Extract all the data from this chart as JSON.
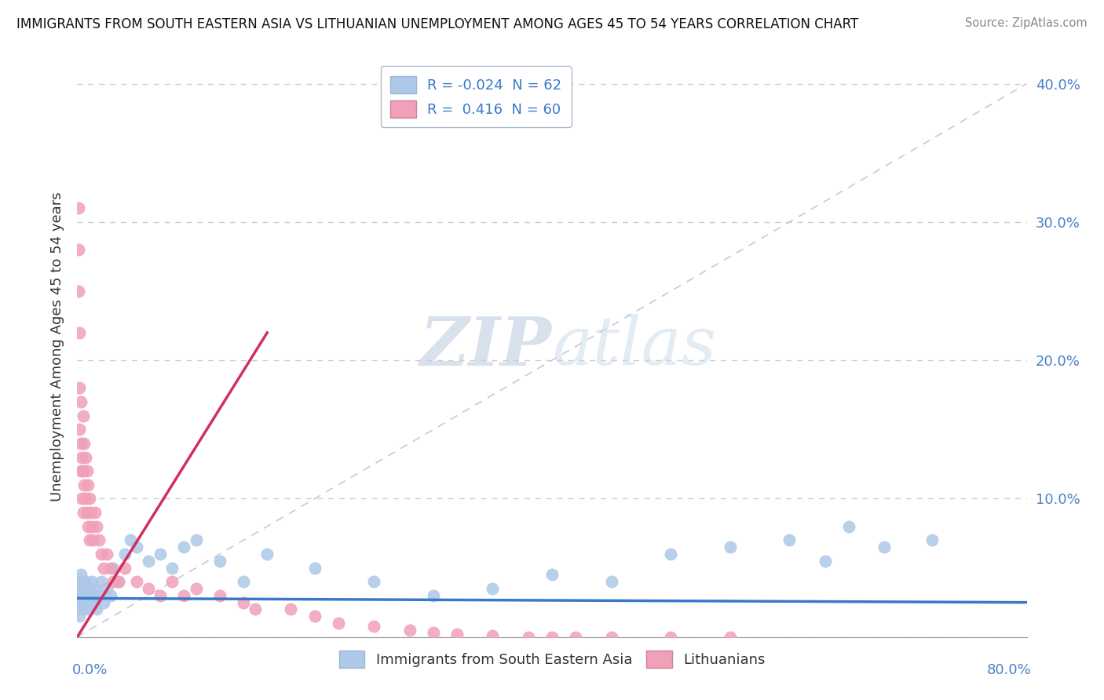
{
  "title": "IMMIGRANTS FROM SOUTH EASTERN ASIA VS LITHUANIAN UNEMPLOYMENT AMONG AGES 45 TO 54 YEARS CORRELATION CHART",
  "source": "Source: ZipAtlas.com",
  "ylabel": "Unemployment Among Ages 45 to 54 years",
  "xlim": [
    0.0,
    0.8
  ],
  "ylim": [
    0.0,
    0.42
  ],
  "blue_color": "#adc8e8",
  "pink_color": "#f0a0b8",
  "blue_line_color": "#3a78c9",
  "pink_line_color": "#d03060",
  "diag_color": "#c8c8d8",
  "watermark_color": "#dce6f0",
  "legend_blue_label": "R = -0.024  N = 62",
  "legend_pink_label": "R =  0.416  N = 60",
  "legend_entries": [
    "Immigrants from South Eastern Asia",
    "Lithuanians"
  ],
  "blue_x": [
    0.001,
    0.001,
    0.001,
    0.001,
    0.002,
    0.002,
    0.002,
    0.003,
    0.003,
    0.003,
    0.004,
    0.004,
    0.004,
    0.005,
    0.005,
    0.006,
    0.006,
    0.007,
    0.007,
    0.008,
    0.008,
    0.009,
    0.009,
    0.01,
    0.01,
    0.011,
    0.012,
    0.013,
    0.014,
    0.015,
    0.016,
    0.018,
    0.02,
    0.022,
    0.025,
    0.028,
    0.03,
    0.035,
    0.04,
    0.045,
    0.05,
    0.06,
    0.07,
    0.08,
    0.09,
    0.1,
    0.12,
    0.14,
    0.16,
    0.2,
    0.25,
    0.3,
    0.35,
    0.4,
    0.45,
    0.5,
    0.55,
    0.6,
    0.63,
    0.65,
    0.68,
    0.72
  ],
  "blue_y": [
    0.03,
    0.04,
    0.02,
    0.035,
    0.025,
    0.04,
    0.015,
    0.03,
    0.045,
    0.02,
    0.035,
    0.025,
    0.04,
    0.03,
    0.02,
    0.035,
    0.025,
    0.03,
    0.04,
    0.025,
    0.035,
    0.02,
    0.03,
    0.035,
    0.025,
    0.03,
    0.04,
    0.025,
    0.03,
    0.035,
    0.02,
    0.03,
    0.04,
    0.025,
    0.035,
    0.03,
    0.05,
    0.04,
    0.06,
    0.07,
    0.065,
    0.055,
    0.06,
    0.05,
    0.065,
    0.07,
    0.055,
    0.04,
    0.06,
    0.05,
    0.04,
    0.03,
    0.035,
    0.045,
    0.04,
    0.06,
    0.065,
    0.07,
    0.055,
    0.08,
    0.065,
    0.07
  ],
  "pink_x": [
    0.001,
    0.001,
    0.001,
    0.002,
    0.002,
    0.002,
    0.003,
    0.003,
    0.003,
    0.004,
    0.004,
    0.005,
    0.005,
    0.005,
    0.006,
    0.006,
    0.007,
    0.007,
    0.008,
    0.008,
    0.009,
    0.009,
    0.01,
    0.01,
    0.011,
    0.012,
    0.013,
    0.015,
    0.016,
    0.018,
    0.02,
    0.022,
    0.025,
    0.028,
    0.03,
    0.035,
    0.04,
    0.05,
    0.06,
    0.07,
    0.08,
    0.09,
    0.1,
    0.12,
    0.14,
    0.15,
    0.18,
    0.2,
    0.22,
    0.25,
    0.28,
    0.3,
    0.32,
    0.35,
    0.38,
    0.4,
    0.42,
    0.45,
    0.5,
    0.55
  ],
  "pink_y": [
    0.28,
    0.31,
    0.25,
    0.22,
    0.18,
    0.15,
    0.17,
    0.14,
    0.12,
    0.13,
    0.1,
    0.16,
    0.12,
    0.09,
    0.14,
    0.11,
    0.13,
    0.1,
    0.12,
    0.09,
    0.11,
    0.08,
    0.1,
    0.07,
    0.09,
    0.08,
    0.07,
    0.09,
    0.08,
    0.07,
    0.06,
    0.05,
    0.06,
    0.05,
    0.04,
    0.04,
    0.05,
    0.04,
    0.035,
    0.03,
    0.04,
    0.03,
    0.035,
    0.03,
    0.025,
    0.02,
    0.02,
    0.015,
    0.01,
    0.008,
    0.005,
    0.003,
    0.002,
    0.001,
    0.0,
    0.0,
    0.0,
    0.0,
    0.0,
    0.0
  ],
  "pink_line_x": [
    0.0,
    0.16
  ],
  "pink_line_y": [
    0.0,
    0.22
  ],
  "blue_line_x": [
    0.0,
    0.8
  ],
  "blue_line_y": [
    0.028,
    0.025
  ]
}
